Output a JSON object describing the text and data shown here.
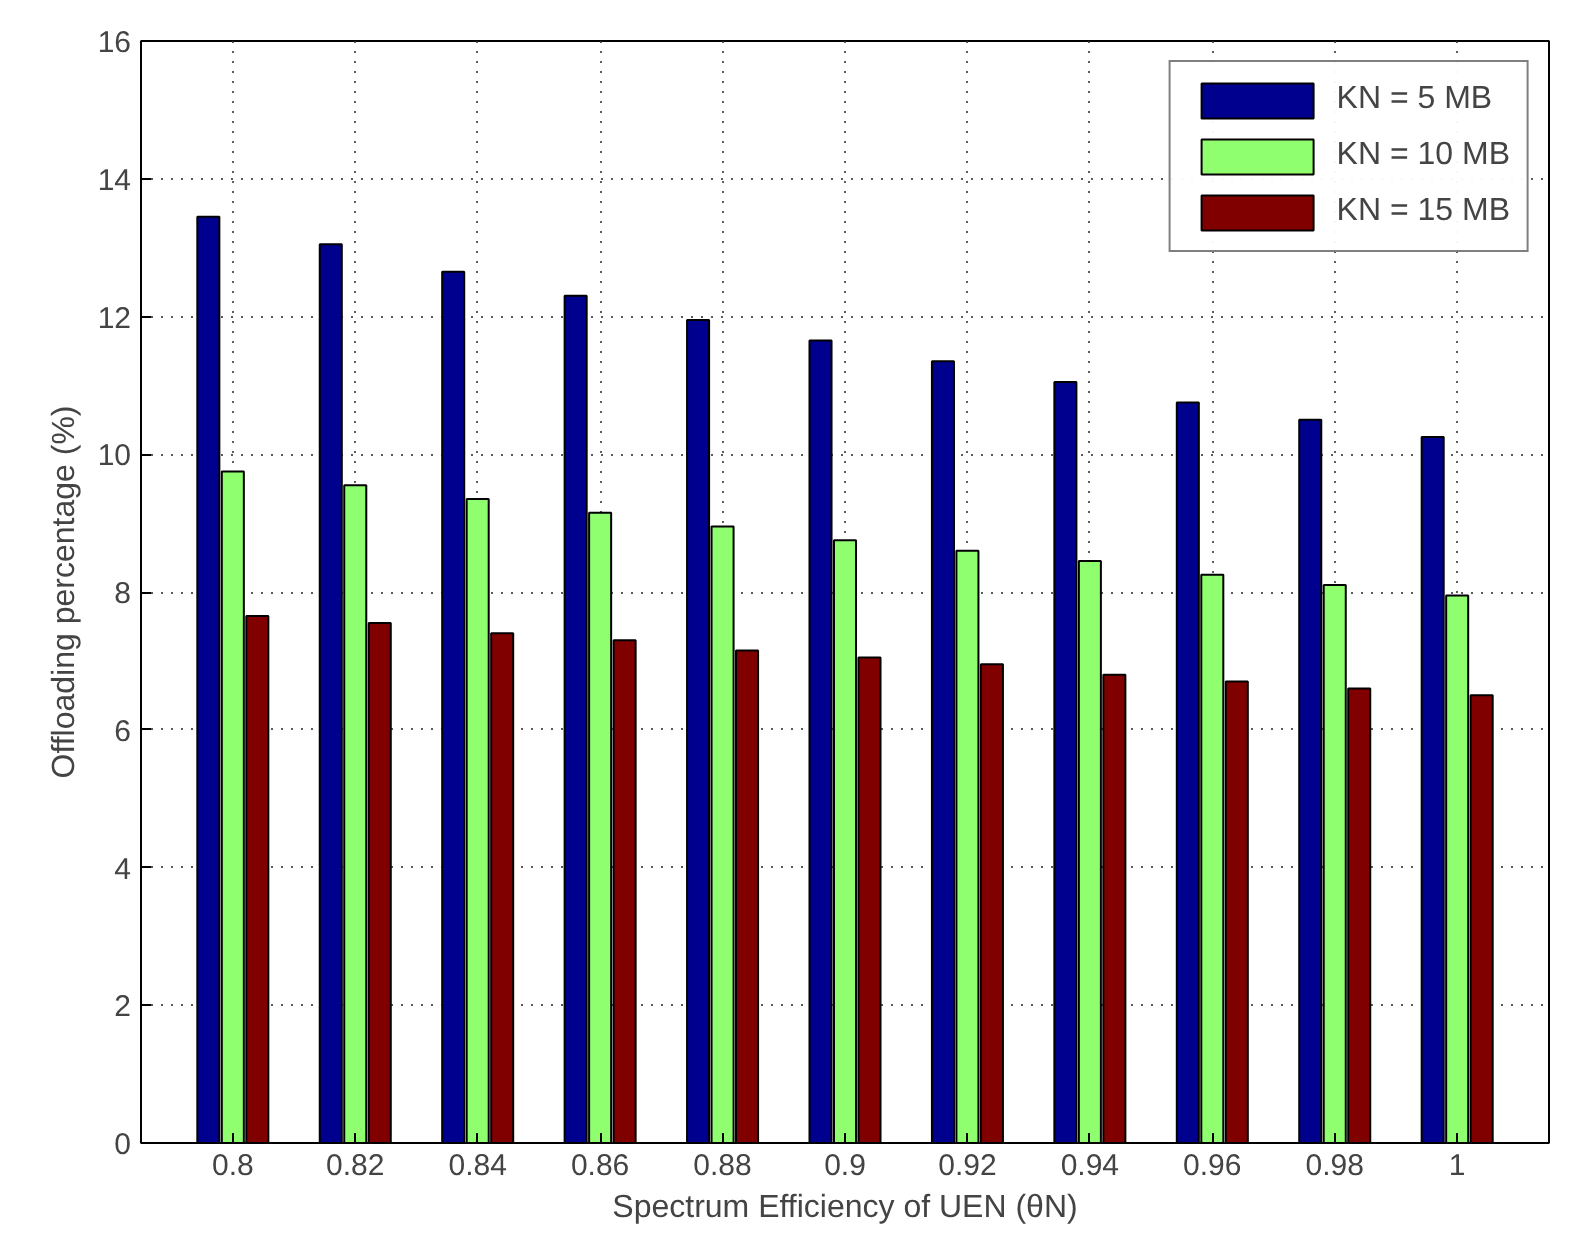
{
  "chart_data": {
    "type": "bar",
    "xlabel": "Spectrum Efficiency of UEN (θN)",
    "ylabel": "Offloading percentage (%)",
    "categories": [
      "0.8",
      "0.82",
      "0.84",
      "0.86",
      "0.88",
      "0.9",
      "0.92",
      "0.94",
      "0.96",
      "0.98",
      "1"
    ],
    "series": [
      {
        "name": "KN = 5 MB",
        "color": "#00008f",
        "values": [
          13.45,
          13.05,
          12.65,
          12.3,
          11.95,
          11.65,
          11.35,
          11.05,
          10.75,
          10.5,
          10.25
        ]
      },
      {
        "name": "KN = 10 MB",
        "color": "#8fff6f",
        "values": [
          9.75,
          9.55,
          9.35,
          9.15,
          8.95,
          8.75,
          8.6,
          8.45,
          8.25,
          8.1,
          7.95
        ]
      },
      {
        "name": "KN = 15 MB",
        "color": "#800000",
        "values": [
          7.65,
          7.55,
          7.4,
          7.3,
          7.15,
          7.05,
          6.95,
          6.8,
          6.7,
          6.6,
          6.5
        ]
      }
    ],
    "ylim": [
      0,
      16
    ],
    "yticks": [
      0,
      2,
      4,
      6,
      8,
      10,
      12,
      14,
      16
    ],
    "grid": true,
    "legend": "top right"
  }
}
